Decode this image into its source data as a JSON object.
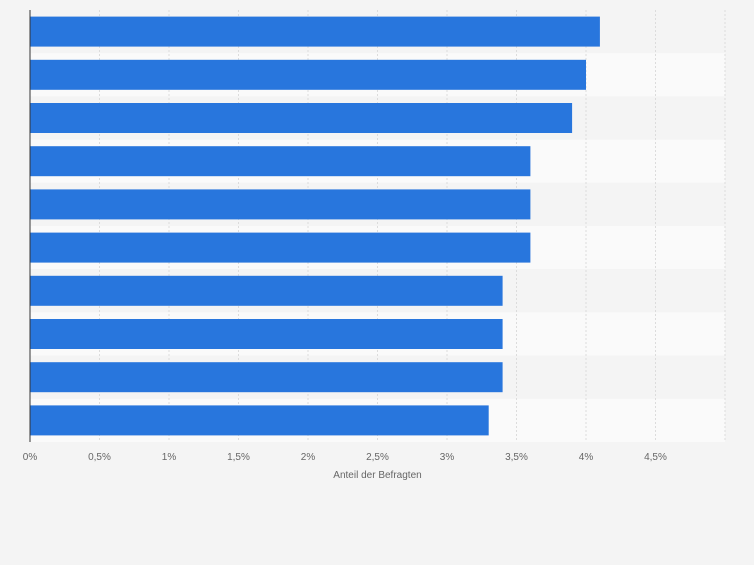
{
  "chart_data": {
    "type": "bar",
    "orientation": "horizontal",
    "categories": [
      "",
      "",
      "",
      "",
      "",
      "",
      "",
      "",
      "",
      ""
    ],
    "values": [
      4.1,
      4.0,
      3.9,
      3.6,
      3.6,
      3.6,
      3.4,
      3.4,
      3.4,
      3.3
    ],
    "xlim": [
      0,
      5
    ],
    "xticks": [
      "0%",
      "0,5%",
      "1%",
      "1,5%",
      "2%",
      "2,5%",
      "3%",
      "3,5%",
      "4%",
      "4,5%"
    ],
    "xlabel": "Anteil der Befragten",
    "ylabel": "",
    "title": "",
    "grid": true,
    "colors": {
      "bar": "#2876dd",
      "background": "#f4f4f4",
      "band_light": "#fafafa",
      "band_dark": "#f4f4f4",
      "grid": "#dcdcdc",
      "axis": "#333333",
      "tick_text": "#666666"
    }
  }
}
